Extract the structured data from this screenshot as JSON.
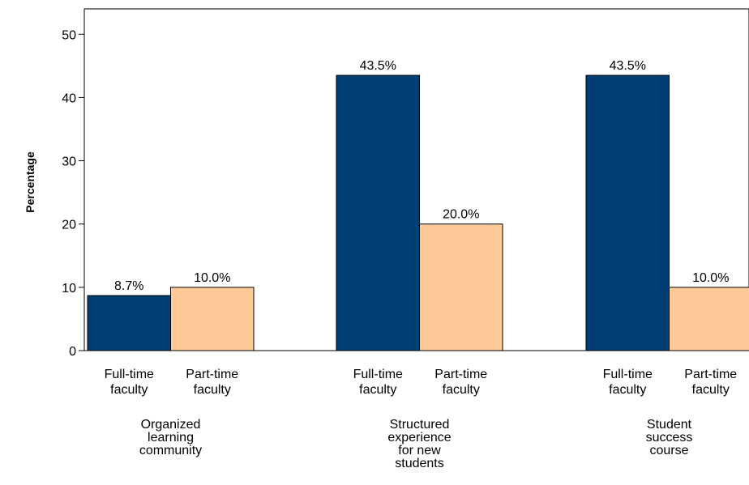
{
  "chart_data": {
    "type": "bar",
    "title": "",
    "xlabel": "",
    "ylabel": "Percentage",
    "ylim": [
      0,
      54
    ],
    "yticks": [
      0,
      10,
      20,
      30,
      40,
      50
    ],
    "grid": false,
    "groups": [
      {
        "name_lines": [
          "Organized",
          "learning",
          "community"
        ],
        "bars": [
          {
            "category_lines": [
              "Full-time",
              "faculty"
            ],
            "value": 8.7,
            "label": "8.7%",
            "color": "#003E74"
          },
          {
            "category_lines": [
              "Part-time",
              "faculty"
            ],
            "value": 10.0,
            "label": "10.0%",
            "color": "#FDCA98"
          }
        ]
      },
      {
        "name_lines": [
          "Structured",
          "experience",
          "for new",
          "students"
        ],
        "bars": [
          {
            "category_lines": [
              "Full-time",
              "faculty"
            ],
            "value": 43.5,
            "label": "43.5%",
            "color": "#003E74"
          },
          {
            "category_lines": [
              "Part-time",
              "faculty"
            ],
            "value": 20.0,
            "label": "20.0%",
            "color": "#FDCA98"
          }
        ]
      },
      {
        "name_lines": [
          "Student",
          "success",
          "course"
        ],
        "bars": [
          {
            "category_lines": [
              "Full-time",
              "faculty"
            ],
            "value": 43.5,
            "label": "43.5%",
            "color": "#003E74"
          },
          {
            "category_lines": [
              "Part-time",
              "faculty"
            ],
            "value": 10.0,
            "label": "10.0%",
            "color": "#FDCA98"
          }
        ]
      }
    ]
  }
}
